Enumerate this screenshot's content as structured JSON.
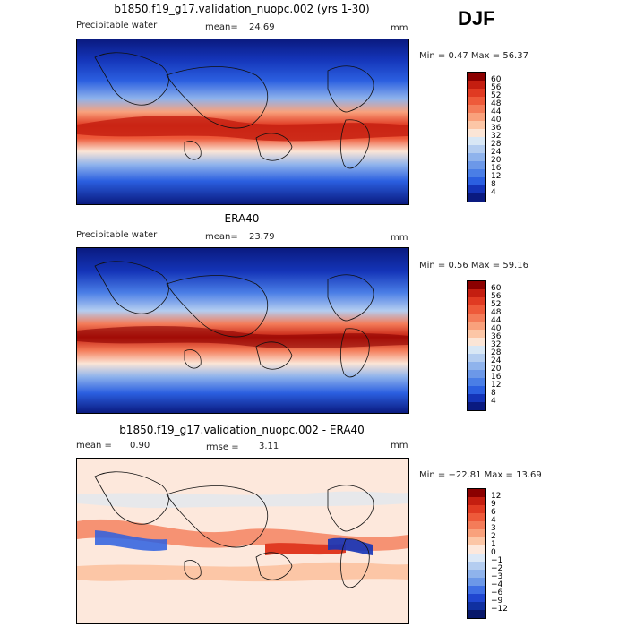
{
  "season": "DJF",
  "panels": [
    {
      "title": "b1850.f19_g17.validation_nuopc.002 (yrs 1-30)",
      "field": "Precipitable water",
      "mean_label": "mean=",
      "mean_value": "24.69",
      "units": "mm",
      "minmax": "Min =    0.47  Max =   56.37",
      "colorbar": {
        "labels": [
          "60",
          "56",
          "52",
          "48",
          "44",
          "40",
          "36",
          "32",
          "28",
          "24",
          "20",
          "16",
          "12",
          "8",
          "4"
        ],
        "colors": [
          "#8b0000",
          "#c41e10",
          "#e03a22",
          "#ee5a3a",
          "#f47c59",
          "#f9a17c",
          "#fcc6a6",
          "#fbe5d6",
          "#d8e7f5",
          "#b4cdf0",
          "#8fb3ec",
          "#6c98e8",
          "#4a7ee6",
          "#2b5fe0",
          "#1434b8",
          "#0a1a80"
        ]
      }
    },
    {
      "title": "ERA40",
      "field": "Precipitable water",
      "mean_label": "mean=",
      "mean_value": "23.79",
      "units": "mm",
      "minmax": "Min =    0.56  Max =   59.16",
      "colorbar": {
        "labels": [
          "60",
          "56",
          "52",
          "48",
          "44",
          "40",
          "36",
          "32",
          "28",
          "24",
          "20",
          "16",
          "12",
          "8",
          "4"
        ],
        "colors": [
          "#8b0000",
          "#c41e10",
          "#e03a22",
          "#ee5a3a",
          "#f47c59",
          "#f9a17c",
          "#fcc6a6",
          "#fbe5d6",
          "#d8e7f5",
          "#b4cdf0",
          "#8fb3ec",
          "#6c98e8",
          "#4a7ee6",
          "#2b5fe0",
          "#1434b8",
          "#0a1a80"
        ]
      }
    },
    {
      "title": "b1850.f19_g17.validation_nuopc.002 - ERA40",
      "mean_label": "mean =",
      "mean_value": "0.90",
      "rmse_label": "rmse =",
      "rmse_value": "3.11",
      "units": "mm",
      "minmax": "Min = −22.81  Max =   13.69",
      "colorbar": {
        "labels": [
          "12",
          "9",
          "6",
          "4",
          "3",
          "2",
          "1",
          "0",
          "−1",
          "−2",
          "−3",
          "−4",
          "−6",
          "−9",
          "−12"
        ],
        "colors": [
          "#8b0000",
          "#c41e10",
          "#e03a22",
          "#ee5a3a",
          "#f47c59",
          "#f9a17c",
          "#fcc6a6",
          "#fde8dc",
          "#dce8f6",
          "#b4cdf0",
          "#8fb3ec",
          "#6c98e8",
          "#3f6fe4",
          "#2046d0",
          "#1030a0",
          "#08186a"
        ]
      }
    }
  ]
}
